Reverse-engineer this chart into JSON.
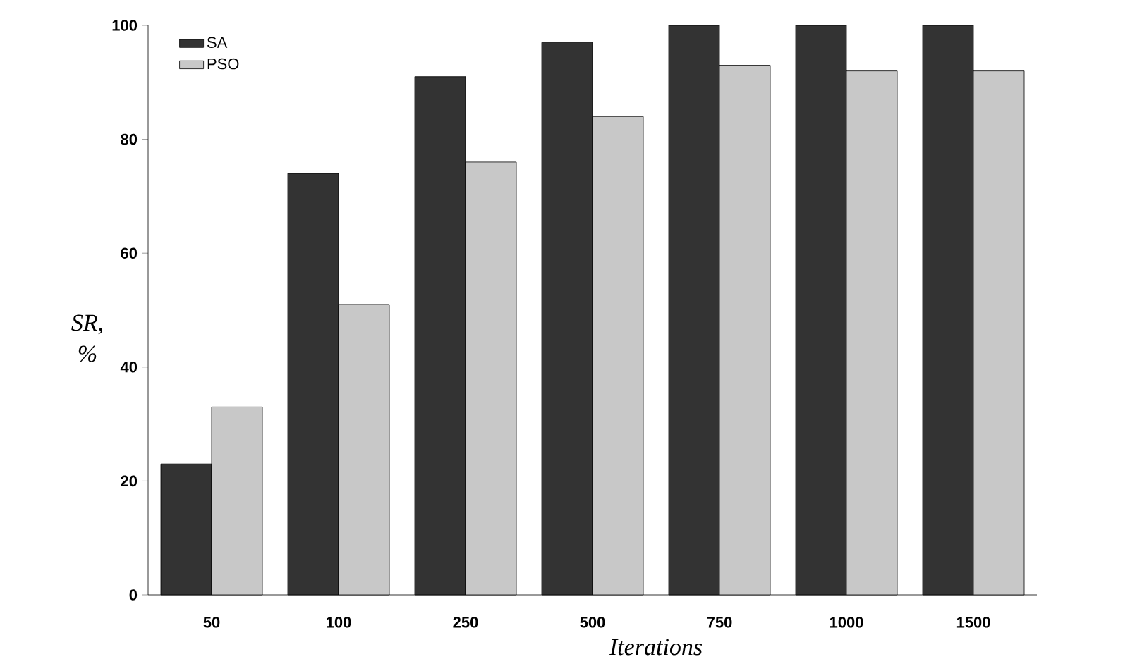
{
  "chart_data": {
    "type": "bar",
    "xlabel": "Iterations",
    "ylabel": "SR, %",
    "categories": [
      "50",
      "100",
      "250",
      "500",
      "750",
      "1000",
      "1500"
    ],
    "series": [
      {
        "name": "SA",
        "color": "#333333",
        "values": [
          23,
          74,
          91,
          97,
          100,
          100,
          100
        ]
      },
      {
        "name": "PSO",
        "color": "#c8c8c8",
        "values": [
          33,
          51,
          76,
          84,
          93,
          92,
          92
        ]
      }
    ],
    "ylim": [
      0,
      100
    ],
    "yticks": [
      0,
      20,
      40,
      60,
      80,
      100
    ],
    "grid": false,
    "legend": "top left"
  }
}
